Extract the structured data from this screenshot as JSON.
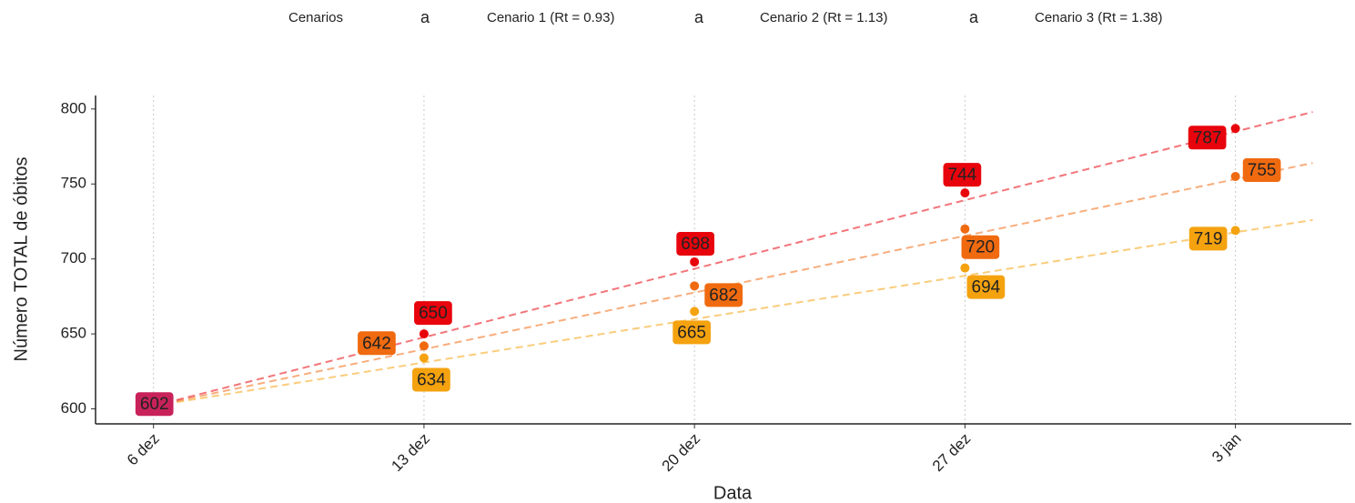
{
  "chart_data": {
    "type": "line",
    "legend_title": "Cenarios",
    "legend_key_glyph": "a",
    "xlabel": "Data",
    "ylabel": "Número TOTAL de óbitos",
    "xlim": [
      -1.5,
      31
    ],
    "xticks": [
      {
        "value": 0,
        "label": "6 dez"
      },
      {
        "value": 7,
        "label": "13 dez"
      },
      {
        "value": 14,
        "label": "20 dez"
      },
      {
        "value": 21,
        "label": "27 dez"
      },
      {
        "value": 28,
        "label": "3 jan"
      }
    ],
    "ylim": [
      590,
      809
    ],
    "yticks": [
      600,
      650,
      700,
      750,
      800
    ],
    "grid": "x",
    "start": {
      "x": 0,
      "value": 602,
      "color": "#c8225a"
    },
    "series": [
      {
        "name": "Cenario 1 (Rt = 0.93)",
        "color": "#f5a20f",
        "x": [
          7,
          14,
          21,
          28
        ],
        "values": [
          634,
          665,
          694,
          719
        ],
        "trend": {
          "x": [
            0,
            30
          ],
          "values": [
            602,
            726
          ]
        }
      },
      {
        "name": "Cenario 2 (Rt = 1.13)",
        "color": "#f06a10",
        "x": [
          7,
          14,
          21,
          28
        ],
        "values": [
          642,
          682,
          720,
          755
        ],
        "trend": {
          "x": [
            0,
            30
          ],
          "values": [
            602,
            764
          ]
        }
      },
      {
        "name": "Cenario 3 (Rt = 1.38)",
        "color": "#e8040c",
        "x": [
          7,
          14,
          21,
          28
        ],
        "values": [
          650,
          698,
          744,
          787
        ],
        "trend": {
          "x": [
            0,
            30
          ],
          "values": [
            602,
            798
          ]
        }
      }
    ]
  }
}
